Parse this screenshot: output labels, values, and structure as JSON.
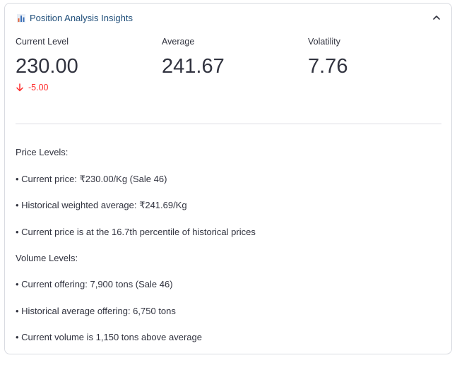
{
  "panel": {
    "title": "Position Analysis Insights",
    "icon": "bar-chart-icon",
    "expanded": true
  },
  "metrics": [
    {
      "label": "Current Level",
      "value": "230.00",
      "delta": "-5.00",
      "delta_direction": "down",
      "delta_color": "#ff2b2b"
    },
    {
      "label": "Average",
      "value": "241.67"
    },
    {
      "label": "Volatility",
      "value": "7.76"
    }
  ],
  "insights": {
    "price_heading": "Price Levels:",
    "price_lines": [
      "• Current price: ₹230.00/Kg (Sale 46)",
      "• Historical weighted average: ₹241.69/Kg",
      "• Current price is at the 16.7th percentile of historical prices"
    ],
    "volume_heading": "Volume Levels:",
    "volume_lines": [
      "• Current offering: 7,900 tons (Sale 46)",
      "• Historical average offering: 6,750 tons",
      "• Current volume is 1,150 tons above average"
    ]
  },
  "colors": {
    "title": "#1f4e79",
    "negative": "#ff2b2b",
    "border": "#d9dbe1"
  }
}
